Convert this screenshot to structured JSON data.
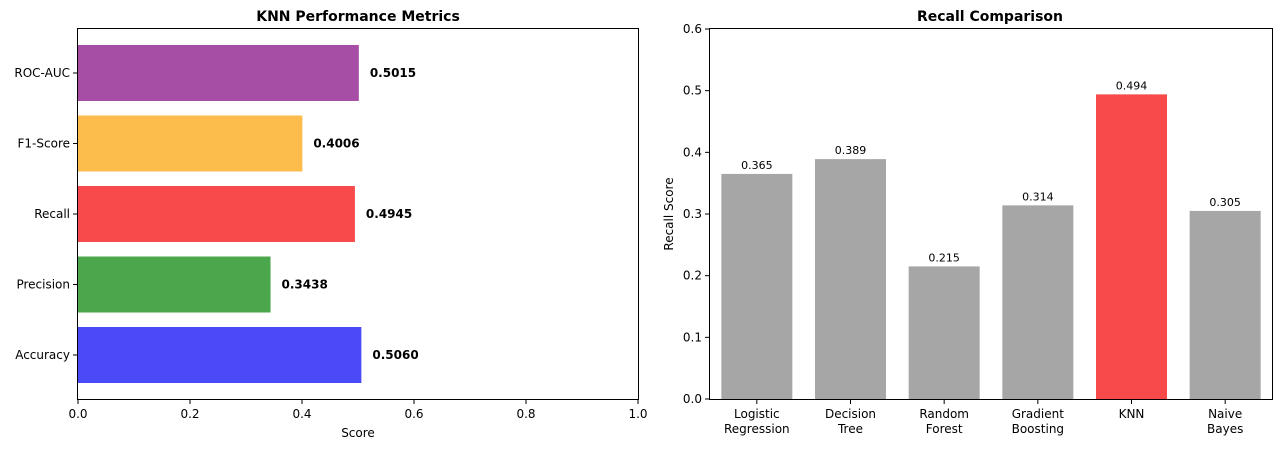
{
  "chart_data": [
    {
      "type": "bar",
      "orientation": "horizontal",
      "title": "KNN Performance Metrics",
      "xlabel": "Score",
      "ylabel": "",
      "xlim": [
        0,
        1.0
      ],
      "xticks": [
        "0.0",
        "0.2",
        "0.4",
        "0.6",
        "0.8",
        "1.0"
      ],
      "categories": [
        "Accuracy",
        "Precision",
        "Recall",
        "F1-Score",
        "ROC-AUC"
      ],
      "values": [
        0.506,
        0.3438,
        0.4945,
        0.4006,
        0.5015
      ],
      "value_labels": [
        "0.5060",
        "0.3438",
        "0.4945",
        "0.4006",
        "0.5015"
      ],
      "colors": [
        "#4a4af8",
        "#4ca64c",
        "#f84a4a",
        "#fdbd4d",
        "#a64ea6"
      ],
      "grid": false
    },
    {
      "type": "bar",
      "orientation": "vertical",
      "title": "Recall Comparison",
      "xlabel": "",
      "ylabel": "Recall Score",
      "ylim": [
        0,
        0.6
      ],
      "yticks": [
        "0.0",
        "0.1",
        "0.2",
        "0.3",
        "0.4",
        "0.5",
        "0.6"
      ],
      "categories": [
        [
          "Logistic",
          "Regression"
        ],
        [
          "Decision",
          "Tree"
        ],
        [
          "Random",
          "Forest"
        ],
        [
          "Gradient",
          "Boosting"
        ],
        [
          "KNN"
        ],
        [
          "Naive",
          "Bayes"
        ]
      ],
      "values": [
        0.365,
        0.389,
        0.215,
        0.314,
        0.494,
        0.305
      ],
      "value_labels": [
        "0.365",
        "0.389",
        "0.215",
        "0.314",
        "0.494",
        "0.305"
      ],
      "colors": [
        "#a6a6a6",
        "#a6a6a6",
        "#a6a6a6",
        "#a6a6a6",
        "#f84a4a",
        "#a6a6a6"
      ],
      "grid": false
    }
  ]
}
